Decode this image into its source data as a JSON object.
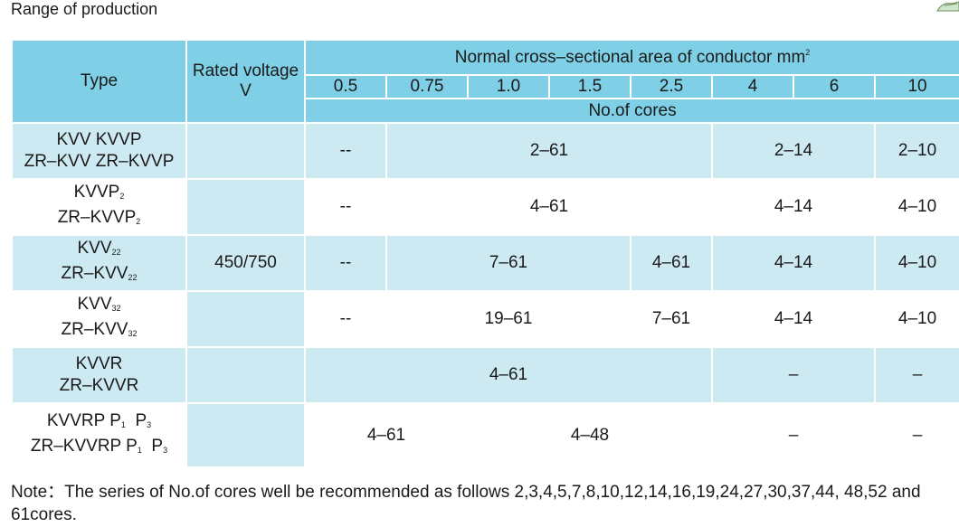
{
  "title": "Range of production",
  "header": {
    "type": "Type",
    "rated_voltage_line1": "Rated voltage",
    "rated_voltage_line2": "V",
    "area_label": "Normal cross–sectional area of conductor mm",
    "area_unit_sup": "2",
    "sizes": [
      "0.5",
      "0.75",
      "1.0",
      "1.5",
      "2.5",
      "4",
      "6",
      "10"
    ],
    "cores_label": "No.of cores"
  },
  "rows": [
    {
      "type_line1": "KVV KVVP",
      "type_line2": "ZR–KVV  ZR–KVVP",
      "c_05": "--",
      "c_075_15": "2–61",
      "c_4_6": "2–14",
      "c_10": "2–10"
    },
    {
      "type_line1": "KVVP",
      "type_line1_sub": "2",
      "type_line2": "ZR–KVVP",
      "type_line2_sub": "2",
      "c_05": "--",
      "c_075_25": "4–61",
      "c_4_6": "4–14",
      "c_10": "4–10"
    },
    {
      "type_line1": "KVV",
      "type_line1_sub": "22",
      "type_line2": "ZR–KVV",
      "type_line2_sub": "22",
      "c_05": "--",
      "c_075_15": "7–61",
      "c_25": "4–61",
      "c_4_6": "4–14",
      "c_10": "4–10"
    },
    {
      "type_line1": "KVV",
      "type_line1_sub": "32",
      "type_line2": "ZR–KVV",
      "type_line2_sub": "32",
      "c_05": "--",
      "c_075_15": "19–61",
      "c_25": "7–61",
      "c_4_6": "4–14",
      "c_10": "4–10"
    },
    {
      "type_line1": "KVVR",
      "type_line2": "ZR–KVVR",
      "c_05_25": "4–61",
      "c_4_6": "–",
      "c_10": "–"
    },
    {
      "type_line1": "KVVRP  P",
      "type_line1_sub1": "1",
      "type_line1_mid": "  P",
      "type_line1_sub2": "3",
      "type_line2": "ZR–KVVRP  P",
      "type_line2_sub1": "1",
      "type_line2_mid": "  P",
      "type_line2_sub2": "3",
      "c_05_075": "4–61",
      "c_10_25": "4–48",
      "c_4_6": "–",
      "c_10": "–"
    }
  ],
  "rated_voltage_value": "450/750",
  "note": "Note：The series of No.of cores well be recommended as follows 2,3,4,5,7,8,10,12,14,16,19,24,27,30,37,44, 48,52 and 61cores."
}
